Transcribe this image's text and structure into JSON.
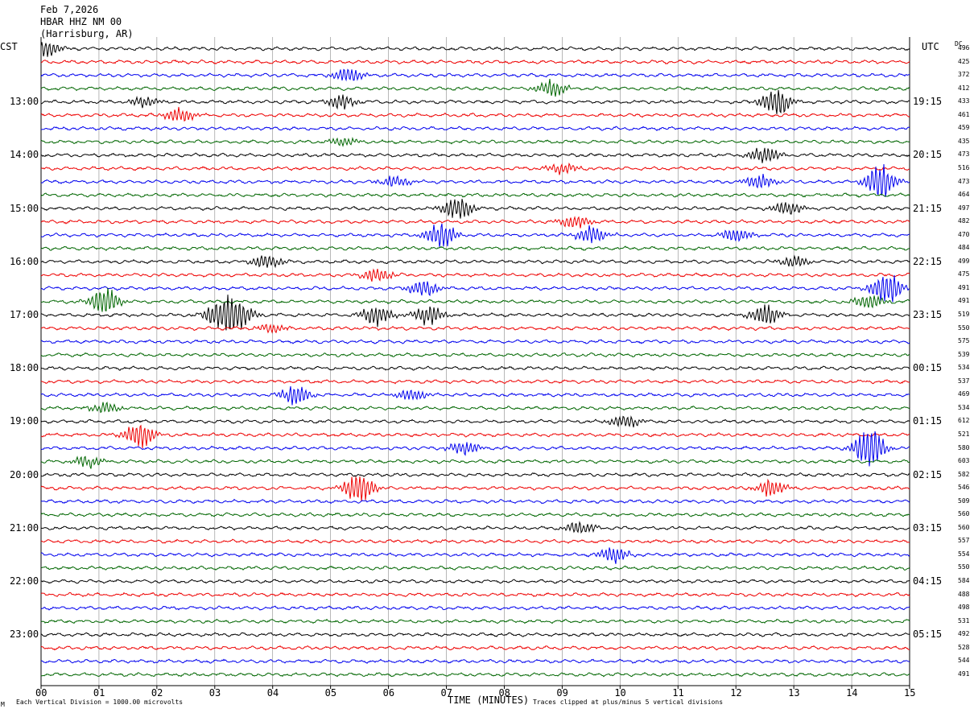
{
  "header": {
    "date": "Feb 7,2026",
    "station": "HBAR HHZ NM 00",
    "location": "(Harrisburg, AR)"
  },
  "axes": {
    "left_zone": "CST",
    "right_zone": "UTC",
    "dc_label": "DC",
    "xlabel": "TIME (MINUTES)",
    "x_ticks": [
      "00",
      "01",
      "02",
      "03",
      "04",
      "05",
      "06",
      "07",
      "08",
      "09",
      "10",
      "11",
      "12",
      "13",
      "14",
      "15"
    ]
  },
  "footer": {
    "scale_note": "Each Vertical Division = 1000.00 microvolts",
    "clip_note": "Traces clipped at plus/minus 5 vertical divisions",
    "corner_mark": "M"
  },
  "colors": {
    "trace_cycle": [
      "#000000",
      "#ee0000",
      "#0000ee",
      "#006600"
    ],
    "grid": "#888888"
  },
  "chart_data": {
    "type": "line",
    "title": "HBAR HHZ NM 00 (Harrisburg, AR) Feb 7,2026",
    "xlabel": "TIME (MINUTES)",
    "xlim": [
      0,
      15
    ],
    "rows_per_hour": 4,
    "minutes_per_row": 15,
    "left_hour_labels": [
      "13:00",
      "14:00",
      "15:00",
      "16:00",
      "17:00",
      "18:00",
      "19:00",
      "20:00",
      "21:00",
      "22:00",
      "23:00"
    ],
    "right_hour_labels": [
      "19:15",
      "20:15",
      "21:15",
      "22:15",
      "23:15",
      "00:15",
      "01:15",
      "02:15",
      "03:15",
      "04:15",
      "05:15"
    ],
    "hour_label_first_row": 4,
    "dc_offsets": [
      "496",
      "425",
      "372",
      "412",
      "433",
      "461",
      "459",
      "435",
      "473",
      "516",
      "473",
      "464",
      "497",
      "482",
      "470",
      "484",
      "499",
      "475",
      "491",
      "491",
      "519",
      "550",
      "575",
      "539",
      "534",
      "537",
      "469",
      "534",
      "612",
      "521",
      "580",
      "603",
      "582",
      "546",
      "509",
      "560",
      "560",
      "557",
      "554",
      "550",
      "584",
      "488",
      "498",
      "531",
      "492",
      "528",
      "544",
      "491"
    ],
    "events": [
      {
        "row": 0,
        "minute": 0.1,
        "amp": 0.6
      },
      {
        "row": 2,
        "minute": 5.3,
        "amp": 0.5
      },
      {
        "row": 3,
        "minute": 8.8,
        "amp": 0.6
      },
      {
        "row": 4,
        "minute": 1.8,
        "amp": 0.4
      },
      {
        "row": 4,
        "minute": 5.2,
        "amp": 0.5
      },
      {
        "row": 4,
        "minute": 12.7,
        "amp": 1.0
      },
      {
        "row": 5,
        "minute": 2.4,
        "amp": 0.5
      },
      {
        "row": 7,
        "minute": 5.2,
        "amp": 0.3
      },
      {
        "row": 8,
        "minute": 12.5,
        "amp": 0.6
      },
      {
        "row": 9,
        "minute": 9.0,
        "amp": 0.4
      },
      {
        "row": 10,
        "minute": 6.1,
        "amp": 0.4
      },
      {
        "row": 10,
        "minute": 12.4,
        "amp": 0.5
      },
      {
        "row": 10,
        "minute": 14.5,
        "amp": 1.2
      },
      {
        "row": 12,
        "minute": 7.2,
        "amp": 0.8
      },
      {
        "row": 12,
        "minute": 12.9,
        "amp": 0.5
      },
      {
        "row": 13,
        "minute": 9.2,
        "amp": 0.5
      },
      {
        "row": 14,
        "minute": 6.9,
        "amp": 0.9
      },
      {
        "row": 14,
        "minute": 9.5,
        "amp": 0.6
      },
      {
        "row": 14,
        "minute": 12.0,
        "amp": 0.5
      },
      {
        "row": 16,
        "minute": 3.9,
        "amp": 0.5
      },
      {
        "row": 16,
        "minute": 13.0,
        "amp": 0.4
      },
      {
        "row": 17,
        "minute": 5.8,
        "amp": 0.5
      },
      {
        "row": 18,
        "minute": 6.6,
        "amp": 0.6
      },
      {
        "row": 18,
        "minute": 14.6,
        "amp": 1.2
      },
      {
        "row": 19,
        "minute": 1.1,
        "amp": 1.0
      },
      {
        "row": 19,
        "minute": 14.3,
        "amp": 0.5
      },
      {
        "row": 20,
        "minute": 3.1,
        "amp": 1.0
      },
      {
        "row": 20,
        "minute": 3.4,
        "amp": 0.9
      },
      {
        "row": 20,
        "minute": 5.8,
        "amp": 0.7
      },
      {
        "row": 20,
        "minute": 6.7,
        "amp": 0.7
      },
      {
        "row": 20,
        "minute": 12.5,
        "amp": 0.7
      },
      {
        "row": 21,
        "minute": 4.0,
        "amp": 0.3
      },
      {
        "row": 26,
        "minute": 4.4,
        "amp": 0.7
      },
      {
        "row": 26,
        "minute": 6.4,
        "amp": 0.4
      },
      {
        "row": 27,
        "minute": 1.1,
        "amp": 0.4
      },
      {
        "row": 28,
        "minute": 10.1,
        "amp": 0.5
      },
      {
        "row": 29,
        "minute": 1.7,
        "amp": 0.9
      },
      {
        "row": 30,
        "minute": 7.3,
        "amp": 0.5
      },
      {
        "row": 30,
        "minute": 14.3,
        "amp": 1.5
      },
      {
        "row": 31,
        "minute": 0.8,
        "amp": 0.4
      },
      {
        "row": 33,
        "minute": 5.5,
        "amp": 1.2
      },
      {
        "row": 33,
        "minute": 12.6,
        "amp": 0.6
      },
      {
        "row": 36,
        "minute": 9.3,
        "amp": 0.5
      },
      {
        "row": 38,
        "minute": 9.9,
        "amp": 0.6
      }
    ]
  }
}
